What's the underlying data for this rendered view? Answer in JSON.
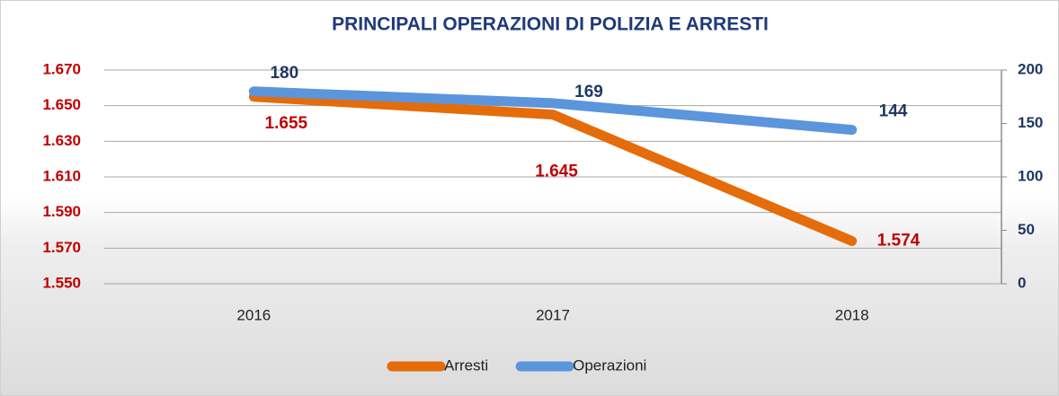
{
  "chart_data": {
    "type": "line",
    "title": "PRINCIPALI OPERAZIONI DI POLIZIA E ARRESTI",
    "categories": [
      "2016",
      "2017",
      "2018"
    ],
    "series": [
      {
        "name": "Arresti",
        "color": "#e46c0a",
        "values": [
          1655,
          1645,
          1574
        ],
        "value_labels": [
          "1.655",
          "1.645",
          "1.574"
        ]
      },
      {
        "name": "Operazioni",
        "color": "#5b95dc",
        "values": [
          180,
          169,
          144
        ],
        "axis": "y2"
      }
    ],
    "ylim": [
      1550,
      1670
    ],
    "yticks": [
      {
        "value": 1550,
        "label": "1.550"
      },
      {
        "value": 1570,
        "label": "1.570"
      },
      {
        "value": 1590,
        "label": "1.590"
      },
      {
        "value": 1610,
        "label": "1.610"
      },
      {
        "value": 1630,
        "label": "1.630"
      },
      {
        "value": 1650,
        "label": "1.650"
      },
      {
        "value": 1670,
        "label": "1.670"
      }
    ],
    "y2lim": [
      0,
      200
    ],
    "y2ticks": [
      0,
      50,
      100,
      150,
      200
    ],
    "grid": true,
    "legend": "bottom"
  }
}
